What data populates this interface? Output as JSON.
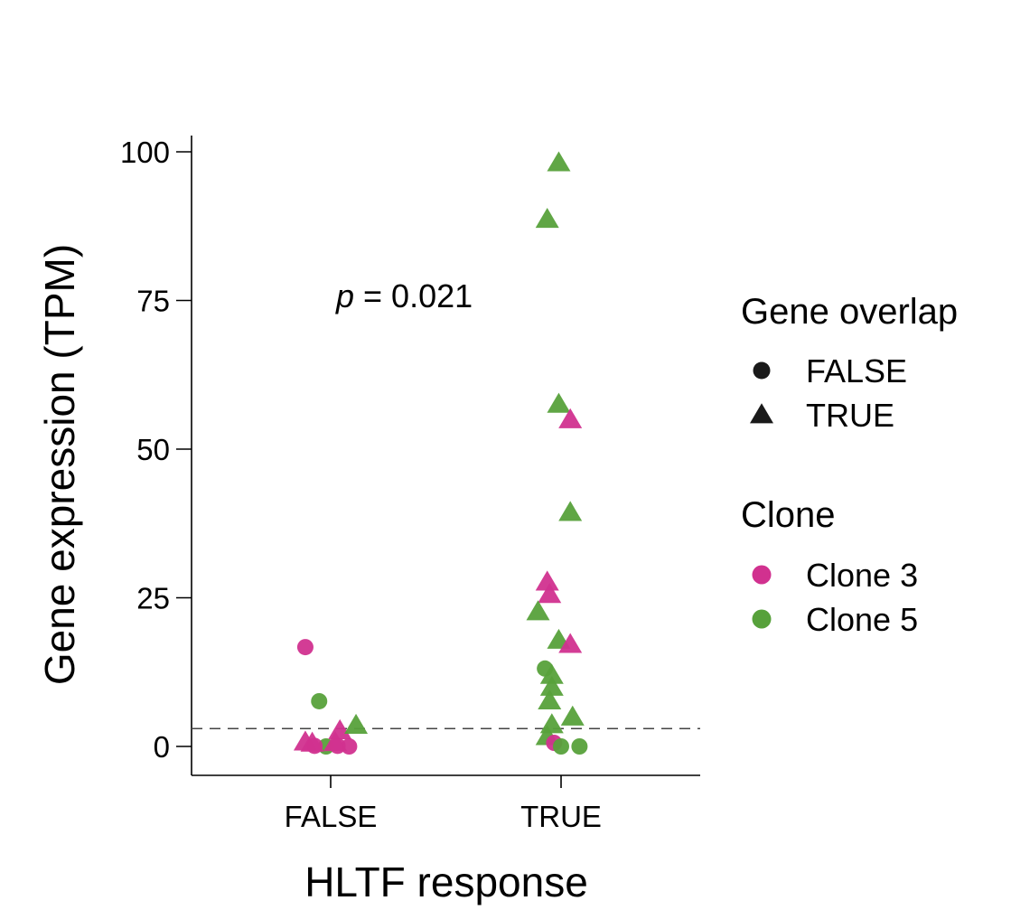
{
  "colors": {
    "clone_3": "#d1318f",
    "clone_5": "#57a13b",
    "shape_key": "#1a1a1a",
    "reference_line": "#444444"
  },
  "chart_data": {
    "type": "scatter",
    "x_axis": {
      "title": "HLTF response",
      "categories": [
        "FALSE",
        "TRUE"
      ]
    },
    "y_axis": {
      "title": "Gene expression (TPM)",
      "ticks": [
        0,
        25,
        50,
        75,
        100
      ],
      "ylim": [
        -5,
        100
      ]
    },
    "reference_line": {
      "y": 3,
      "style": "dashed"
    },
    "annotation": {
      "italic_prefix": "p",
      "rest": " = 0.021"
    },
    "legends": {
      "shape": {
        "title": "Gene overlap",
        "entries": [
          {
            "label": "FALSE",
            "shape": "circle"
          },
          {
            "label": "TRUE",
            "shape": "triangle"
          }
        ]
      },
      "color": {
        "title": "Clone",
        "entries": [
          {
            "label": "Clone 3",
            "color_key": "clone_3"
          },
          {
            "label": "Clone 5",
            "color_key": "clone_5"
          }
        ]
      }
    },
    "points": [
      {
        "group": "FALSE",
        "jitter": -0.11,
        "y": 16.7,
        "shape": "circle",
        "clone": "Clone 3"
      },
      {
        "group": "FALSE",
        "jitter": -0.05,
        "y": 7.6,
        "shape": "circle",
        "clone": "Clone 5"
      },
      {
        "group": "FALSE",
        "jitter": -0.02,
        "y": 0.0,
        "shape": "circle",
        "clone": "Clone 5"
      },
      {
        "group": "FALSE",
        "jitter": -0.07,
        "y": 0.1,
        "shape": "circle",
        "clone": "Clone 3"
      },
      {
        "group": "FALSE",
        "jitter": 0.03,
        "y": 0.1,
        "shape": "circle",
        "clone": "Clone 3"
      },
      {
        "group": "FALSE",
        "jitter": 0.08,
        "y": 0.0,
        "shape": "circle",
        "clone": "Clone 3"
      },
      {
        "group": "FALSE",
        "jitter": -0.11,
        "y": 0.6,
        "shape": "triangle",
        "clone": "Clone 3"
      },
      {
        "group": "FALSE",
        "jitter": -0.08,
        "y": 0.4,
        "shape": "triangle",
        "clone": "Clone 3"
      },
      {
        "group": "FALSE",
        "jitter": 0.02,
        "y": 0.5,
        "shape": "triangle",
        "clone": "Clone 3"
      },
      {
        "group": "FALSE",
        "jitter": 0.04,
        "y": 2.5,
        "shape": "triangle",
        "clone": "Clone 3"
      },
      {
        "group": "FALSE",
        "jitter": 0.11,
        "y": 3.4,
        "shape": "triangle",
        "clone": "Clone 5"
      },
      {
        "group": "TRUE",
        "jitter": -0.01,
        "y": 98.0,
        "shape": "triangle",
        "clone": "Clone 5"
      },
      {
        "group": "TRUE",
        "jitter": -0.06,
        "y": 88.5,
        "shape": "triangle",
        "clone": "Clone 5"
      },
      {
        "group": "TRUE",
        "jitter": -0.01,
        "y": 57.4,
        "shape": "triangle",
        "clone": "Clone 5"
      },
      {
        "group": "TRUE",
        "jitter": 0.04,
        "y": 54.8,
        "shape": "triangle",
        "clone": "Clone 3"
      },
      {
        "group": "TRUE",
        "jitter": 0.04,
        "y": 39.2,
        "shape": "triangle",
        "clone": "Clone 5"
      },
      {
        "group": "TRUE",
        "jitter": -0.06,
        "y": 27.5,
        "shape": "triangle",
        "clone": "Clone 3"
      },
      {
        "group": "TRUE",
        "jitter": -0.05,
        "y": 25.4,
        "shape": "triangle",
        "clone": "Clone 3"
      },
      {
        "group": "TRUE",
        "jitter": -0.1,
        "y": 22.5,
        "shape": "triangle",
        "clone": "Clone 5"
      },
      {
        "group": "TRUE",
        "jitter": -0.01,
        "y": 17.7,
        "shape": "triangle",
        "clone": "Clone 5"
      },
      {
        "group": "TRUE",
        "jitter": 0.04,
        "y": 17.0,
        "shape": "triangle",
        "clone": "Clone 3"
      },
      {
        "group": "TRUE",
        "jitter": -0.07,
        "y": 13.1,
        "shape": "circle",
        "clone": "Clone 5"
      },
      {
        "group": "TRUE",
        "jitter": -0.04,
        "y": 11.8,
        "shape": "triangle",
        "clone": "Clone 5"
      },
      {
        "group": "TRUE",
        "jitter": -0.04,
        "y": 9.8,
        "shape": "triangle",
        "clone": "Clone 5"
      },
      {
        "group": "TRUE",
        "jitter": -0.05,
        "y": 7.5,
        "shape": "triangle",
        "clone": "Clone 5"
      },
      {
        "group": "TRUE",
        "jitter": -0.04,
        "y": 3.5,
        "shape": "triangle",
        "clone": "Clone 5"
      },
      {
        "group": "TRUE",
        "jitter": 0.05,
        "y": 4.8,
        "shape": "triangle",
        "clone": "Clone 5"
      },
      {
        "group": "TRUE",
        "jitter": -0.06,
        "y": 1.5,
        "shape": "triangle",
        "clone": "Clone 5"
      },
      {
        "group": "TRUE",
        "jitter": -0.03,
        "y": 0.6,
        "shape": "circle",
        "clone": "Clone 3"
      },
      {
        "group": "TRUE",
        "jitter": 0.0,
        "y": 0.0,
        "shape": "circle",
        "clone": "Clone 5"
      },
      {
        "group": "TRUE",
        "jitter": 0.08,
        "y": 0.0,
        "shape": "circle",
        "clone": "Clone 5"
      }
    ]
  }
}
